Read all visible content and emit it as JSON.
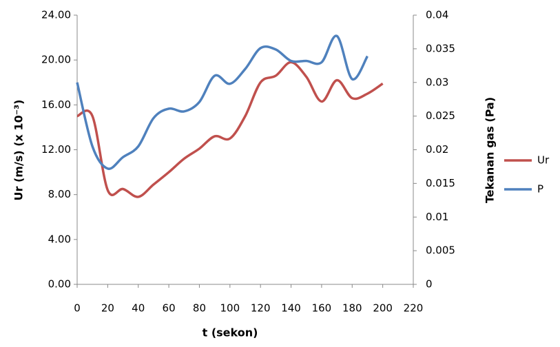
{
  "chart_data": {
    "type": "line",
    "x_label": "t (sekon)",
    "y_label": "Ur (m/s) (x 10⁻³)",
    "y2_label": "Tekanan gas (Pa)",
    "x": [
      0,
      10,
      20,
      30,
      40,
      50,
      60,
      70,
      80,
      90,
      100,
      110,
      120,
      130,
      140,
      150,
      160,
      170,
      180,
      190,
      200
    ],
    "series": [
      {
        "name": "Ur",
        "color": "#c0504d",
        "values": [
          15.0,
          15.0,
          8.4,
          8.5,
          7.8,
          8.9,
          10.0,
          11.2,
          12.1,
          13.2,
          13.0,
          15.0,
          18.0,
          18.6,
          19.8,
          18.5,
          16.3,
          18.2,
          16.6,
          17.0,
          17.9
        ]
      },
      {
        "name": "P",
        "color": "#4f81bd",
        "axis": "y2",
        "values": [
          0.03,
          0.0205,
          0.0172,
          0.0189,
          0.0205,
          0.0247,
          0.0261,
          0.0257,
          0.0271,
          0.031,
          0.0298,
          0.032,
          0.0351,
          0.0349,
          0.0332,
          0.0332,
          0.033,
          0.0369,
          0.0305,
          0.0339,
          null
        ]
      }
    ],
    "xlim": [
      0,
      220
    ],
    "xticks": [
      0,
      20,
      40,
      60,
      80,
      100,
      120,
      140,
      160,
      180,
      200,
      220
    ],
    "ylim": [
      0,
      24
    ],
    "yticks": [
      {
        "value": 0,
        "label": "0.00"
      },
      {
        "value": 4,
        "label": "4.00"
      },
      {
        "value": 8,
        "label": "8.00"
      },
      {
        "value": 12,
        "label": "12.00"
      },
      {
        "value": 16,
        "label": "16.00"
      },
      {
        "value": 20,
        "label": "20.00"
      },
      {
        "value": 24,
        "label": "24.00"
      }
    ],
    "y2lim": [
      0,
      0.04
    ],
    "y2ticks": [
      0,
      0.005,
      0.01,
      0.015,
      0.02,
      0.025,
      0.03,
      0.035,
      0.04
    ],
    "legend": "right"
  }
}
